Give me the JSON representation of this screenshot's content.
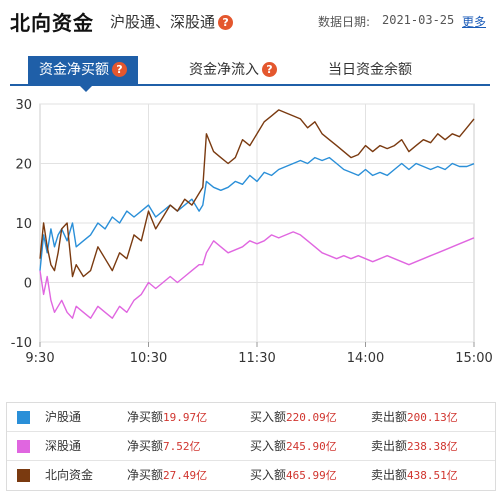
{
  "header": {
    "title": "北向资金",
    "subtitle": "沪股通、深股通",
    "help_glyph": "?",
    "date_label": "数据日期:",
    "date_value": "2021-03-25",
    "more_link": "更多"
  },
  "tabs": [
    {
      "label": "资金净买额",
      "active": true
    },
    {
      "label": "资金净流入",
      "active": false
    },
    {
      "label": "当日资金余额",
      "active": false
    }
  ],
  "colors": {
    "accent": "#1f5fa8",
    "hgt": "#2a8fd8",
    "sgt": "#e066e0",
    "nb": "#7a3a10",
    "value_red": "#d0352f"
  },
  "chart_data": {
    "type": "line",
    "x_ticks": [
      "9:30",
      "10:30",
      "11:30",
      "14:00",
      "15:00"
    ],
    "y_ticks": [
      30,
      20,
      10,
      0,
      -10
    ],
    "ylim": [
      -10,
      30
    ],
    "grid": true,
    "x_session_points": [
      0,
      60,
      120,
      180,
      240
    ],
    "series": [
      {
        "name": "沪股通",
        "color": "#2a8fd8",
        "x": [
          0,
          2,
          4,
          6,
          8,
          10,
          12,
          15,
          18,
          20,
          24,
          28,
          32,
          36,
          40,
          44,
          48,
          52,
          56,
          60,
          64,
          68,
          72,
          76,
          80,
          84,
          88,
          90,
          92,
          96,
          100,
          104,
          108,
          112,
          116,
          120,
          124,
          128,
          132,
          136,
          140,
          144,
          148,
          152,
          156,
          160,
          164,
          168,
          172,
          176,
          180,
          184,
          188,
          192,
          196,
          200,
          204,
          208,
          212,
          216,
          220,
          224,
          228,
          232,
          236,
          240
        ],
        "values": [
          2,
          8,
          5,
          9,
          6,
          8,
          9,
          7,
          10,
          6,
          7,
          8,
          10,
          9,
          11,
          10,
          12,
          11,
          12,
          13,
          11,
          12,
          13,
          12,
          13,
          14,
          12,
          13,
          17,
          16,
          15.5,
          16,
          17,
          16.5,
          18,
          17,
          18.5,
          18,
          19,
          19.5,
          20,
          20.5,
          20,
          21,
          20.5,
          21,
          20,
          19,
          18.5,
          18,
          19,
          18,
          18.5,
          18,
          19,
          20,
          19,
          20,
          19.5,
          19,
          19.5,
          19,
          20,
          19.5,
          19.5,
          19.97
        ]
      },
      {
        "name": "深股通",
        "color": "#e066e0",
        "x": [
          0,
          2,
          4,
          6,
          8,
          10,
          12,
          15,
          18,
          20,
          24,
          28,
          32,
          36,
          40,
          44,
          48,
          52,
          56,
          60,
          64,
          68,
          72,
          76,
          80,
          84,
          88,
          90,
          92,
          96,
          100,
          104,
          108,
          112,
          116,
          120,
          124,
          128,
          132,
          136,
          140,
          144,
          148,
          152,
          156,
          160,
          164,
          168,
          172,
          176,
          180,
          184,
          188,
          192,
          196,
          200,
          204,
          208,
          212,
          216,
          220,
          224,
          228,
          232,
          236,
          240
        ],
        "values": [
          2,
          -2,
          1,
          -3,
          -5,
          -4,
          -3,
          -5,
          -6,
          -4,
          -5,
          -6,
          -4,
          -5,
          -6,
          -4,
          -5,
          -3,
          -2,
          0,
          -1,
          0,
          1,
          0,
          1,
          2,
          3,
          3,
          5,
          7,
          6,
          5,
          5.5,
          6,
          7,
          6.5,
          7,
          8,
          7.5,
          8,
          8.5,
          8,
          7,
          6,
          5,
          4.5,
          4,
          4.5,
          4,
          4.5,
          4,
          3.5,
          4,
          4.5,
          4,
          3.5,
          3,
          3.5,
          4,
          4.5,
          5,
          5.5,
          6,
          6.5,
          7,
          7.52
        ]
      },
      {
        "name": "北向资金",
        "color": "#7a3a10",
        "x": [
          0,
          2,
          4,
          6,
          8,
          10,
          12,
          15,
          18,
          20,
          24,
          28,
          32,
          36,
          40,
          44,
          48,
          52,
          56,
          60,
          64,
          68,
          72,
          76,
          80,
          84,
          88,
          90,
          92,
          96,
          100,
          104,
          108,
          112,
          116,
          120,
          124,
          128,
          132,
          136,
          140,
          144,
          148,
          152,
          156,
          160,
          164,
          168,
          172,
          176,
          180,
          184,
          188,
          192,
          196,
          200,
          204,
          208,
          212,
          216,
          220,
          224,
          228,
          232,
          236,
          240
        ],
        "values": [
          4,
          10,
          6,
          3,
          2,
          5,
          9,
          10,
          1,
          3,
          1,
          2,
          6,
          4,
          2,
          5,
          4,
          8,
          7,
          12,
          9,
          11,
          13,
          12,
          14,
          13,
          15,
          16,
          25,
          22,
          21,
          20,
          21,
          24,
          23,
          25,
          27,
          28,
          29,
          28.5,
          28,
          27.5,
          26,
          27,
          25,
          24,
          23,
          22,
          21,
          21.5,
          23,
          22,
          23,
          22.5,
          23,
          24,
          22,
          23,
          24,
          23.5,
          25,
          24,
          25,
          24.5,
          26,
          27.49
        ]
      }
    ]
  },
  "legend": [
    {
      "name": "沪股通",
      "color": "#2a8fd8",
      "net_label": "净买额",
      "net_value": "19.97亿",
      "buy_label": "买入额",
      "buy_value": "220.09亿",
      "sell_label": "卖出额",
      "sell_value": "200.13亿"
    },
    {
      "name": "深股通",
      "color": "#e066e0",
      "net_label": "净买额",
      "net_value": "7.52亿",
      "buy_label": "买入额",
      "buy_value": "245.90亿",
      "sell_label": "卖出额",
      "sell_value": "238.38亿"
    },
    {
      "name": "北向资金",
      "color": "#7a3a10",
      "net_label": "净买额",
      "net_value": "27.49亿",
      "buy_label": "买入额",
      "buy_value": "465.99亿",
      "sell_label": "卖出额",
      "sell_value": "438.51亿"
    }
  ]
}
